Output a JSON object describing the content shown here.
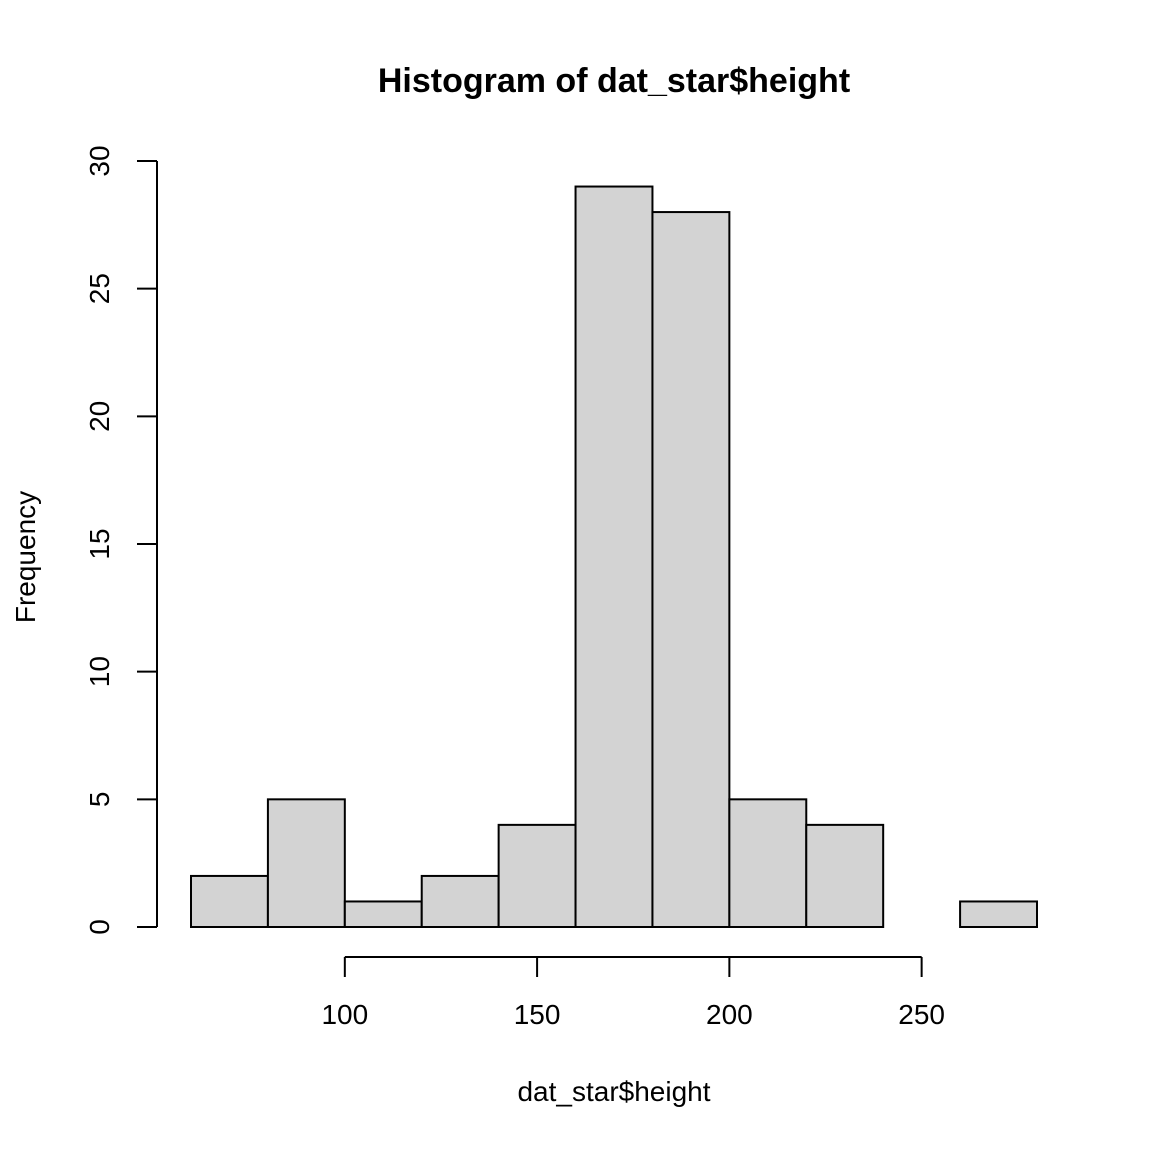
{
  "chart_data": {
    "type": "histogram",
    "title": "Histogram of dat_star$height",
    "xlabel": "dat_star$height",
    "ylabel": "Frequency",
    "bins": [
      {
        "x0": 60,
        "x1": 80,
        "count": 2
      },
      {
        "x0": 80,
        "x1": 100,
        "count": 5
      },
      {
        "x0": 100,
        "x1": 120,
        "count": 1
      },
      {
        "x0": 120,
        "x1": 140,
        "count": 2
      },
      {
        "x0": 140,
        "x1": 160,
        "count": 4
      },
      {
        "x0": 160,
        "x1": 180,
        "count": 29
      },
      {
        "x0": 180,
        "x1": 200,
        "count": 28
      },
      {
        "x0": 200,
        "x1": 220,
        "count": 5
      },
      {
        "x0": 220,
        "x1": 240,
        "count": 4
      },
      {
        "x0": 240,
        "x1": 260,
        "count": 0
      },
      {
        "x0": 260,
        "x1": 280,
        "count": 1
      }
    ],
    "xlim": [
      60,
      280
    ],
    "ylim": [
      0,
      30
    ],
    "x_ticks": [
      100,
      150,
      200,
      250
    ],
    "y_ticks": [
      0,
      5,
      10,
      15,
      20,
      25,
      30
    ],
    "bar_fill": "#d3d3d3",
    "bar_stroke": "#000000",
    "grid": false,
    "legend": "none"
  }
}
